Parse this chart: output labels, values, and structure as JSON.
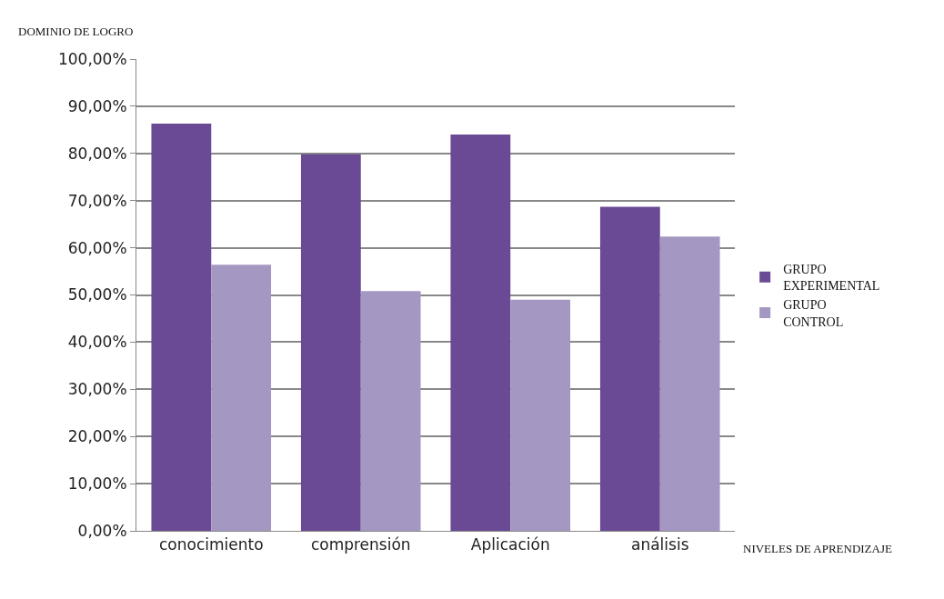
{
  "chart_data": {
    "type": "bar",
    "ylabel": "DOMINIO DE LOGRO",
    "xlabel": "NIVELES DE APRENDIZAJE",
    "categories": [
      "conocimiento",
      "comprensión",
      "Aplicación",
      "análisis"
    ],
    "series": [
      {
        "name": "GRUPO EXPERIMENTAL",
        "color": "#6a4a94",
        "values": [
          86.3,
          79.8,
          84.0,
          68.7
        ]
      },
      {
        "name": "GRUPO CONTROL",
        "color": "#a497c2",
        "values": [
          56.4,
          50.8,
          49.0,
          62.4
        ]
      }
    ],
    "ylim": [
      0,
      100
    ],
    "yticks": [
      {
        "value": 0,
        "label": "0,00%"
      },
      {
        "value": 10,
        "label": "10,00%"
      },
      {
        "value": 20,
        "label": "20,00%"
      },
      {
        "value": 30,
        "label": "30,00%"
      },
      {
        "value": 40,
        "label": "40,00%"
      },
      {
        "value": 50,
        "label": "50,00%"
      },
      {
        "value": 60,
        "label": "60,00%"
      },
      {
        "value": 70,
        "label": "70,00%"
      },
      {
        "value": 80,
        "label": "80,00%"
      },
      {
        "value": 90,
        "label": "90,00%"
      },
      {
        "value": 100,
        "label": "100,00%"
      }
    ],
    "grid": "y",
    "legend": "right"
  }
}
